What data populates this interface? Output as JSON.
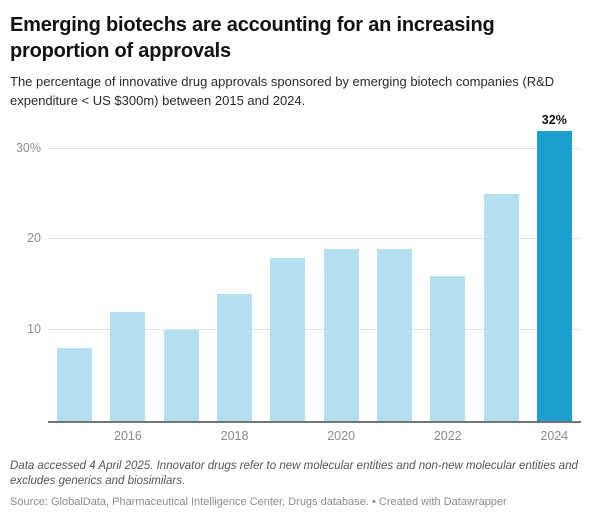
{
  "header": {
    "title": "Emerging biotechs are accounting for an increasing proportion of approvals",
    "subtitle": "The percentage of innovative drug approvals sponsored by emerging biotech companies (R&D expenditure < US $300m) between 2015 and 2024."
  },
  "chart_data": {
    "type": "bar",
    "categories": [
      "2015",
      "2016",
      "2017",
      "2018",
      "2019",
      "2020",
      "2021",
      "2022",
      "2023",
      "2024"
    ],
    "values": [
      8,
      12,
      10,
      14,
      18,
      19,
      19,
      16,
      25,
      32
    ],
    "value_unit": "%",
    "highlight_index": 9,
    "highlight_value_label": "32%",
    "x_tick_labels": [
      "2016",
      "2018",
      "2020",
      "2022",
      "2024"
    ],
    "y_ticks": [
      {
        "value": 10,
        "label": "10"
      },
      {
        "value": 20,
        "label": "20"
      },
      {
        "value": 30,
        "label": "30%"
      }
    ],
    "ylim": [
      0,
      33.6
    ],
    "grid": "horizontal",
    "legend": "none",
    "colors": {
      "bar_light": "#b4dff0",
      "bar_highlight": "#1d9fce"
    }
  },
  "footer": {
    "notes": "Data accessed 4 April 2025. Innovator drugs refer to new molecular entities and non-new molecular entities and excludes generics and biosimilars.",
    "source": "Source: GlobalData, Pharmaceutical Intelligence Center, Drugs database.",
    "separator": "•",
    "attribution": "Created with Datawrapper"
  }
}
